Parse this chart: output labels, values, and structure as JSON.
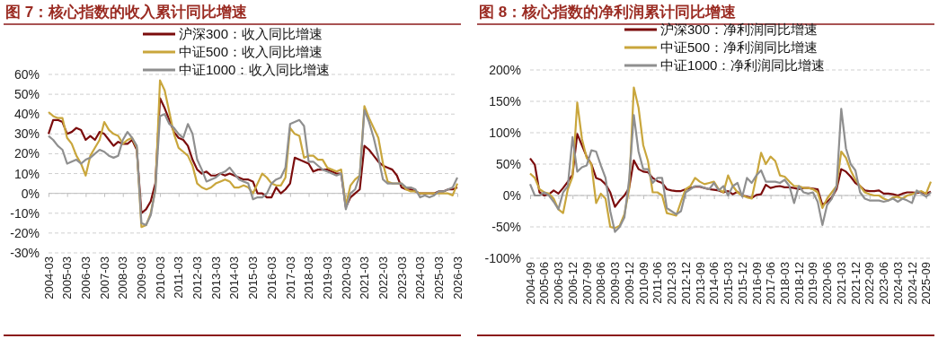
{
  "chart_data": [
    {
      "type": "line",
      "title": "图 7：核心指数的收入累计同比增速",
      "categories": [
        "2004-03",
        null,
        null,
        null,
        "2005-03",
        null,
        null,
        null,
        "2006-03",
        null,
        null,
        null,
        "2007-03",
        null,
        null,
        null,
        "2008-03",
        null,
        null,
        null,
        "2009-03",
        null,
        null,
        null,
        "2010-03",
        null,
        null,
        null,
        "2011-03",
        null,
        null,
        null,
        "2012-03",
        null,
        null,
        null,
        "2013-03",
        null,
        null,
        null,
        "2014-03",
        null,
        null,
        null,
        "2015-03",
        null,
        null,
        null,
        "2016-03",
        null,
        null,
        null,
        "2017-03",
        null,
        null,
        null,
        "2018-03",
        null,
        null,
        null,
        "2019-03",
        null,
        null,
        null,
        "2020-03",
        null,
        null,
        null,
        "2021-03",
        null,
        null,
        null,
        "2022-03",
        null,
        null,
        null,
        "2023-03",
        null,
        null,
        null,
        "2024-03",
        null,
        null,
        null,
        "2025-03",
        null,
        null,
        null,
        "2026-03"
      ],
      "series": [
        {
          "name": "沪深300：收入同比增速",
          "color": "#7b0c0c",
          "values": [
            30,
            37,
            37,
            36,
            30,
            31,
            33,
            32,
            27,
            29,
            27,
            31,
            30,
            27,
            24,
            26,
            25,
            25,
            27,
            22,
            -10,
            -8,
            -4,
            5,
            48,
            43,
            37,
            31,
            28,
            27,
            24,
            17,
            12,
            10,
            11,
            9,
            9,
            10,
            9,
            10,
            9,
            8,
            7,
            7,
            6,
            0,
            0,
            -2,
            -2,
            3,
            0,
            2,
            5,
            18,
            17,
            16,
            15,
            11,
            12,
            12,
            12,
            11,
            10,
            10,
            -7,
            -2,
            0,
            2,
            24,
            22,
            19,
            16,
            14,
            13,
            12,
            9,
            3,
            2,
            2,
            1,
            0,
            0,
            0,
            0,
            1,
            1,
            2,
            2,
            3
          ]
        },
        {
          "name": "中证500：收入同比增速",
          "color": "#c9a63c",
          "values": [
            41,
            39,
            38,
            38,
            28,
            25,
            19,
            15,
            9,
            19,
            23,
            27,
            36,
            32,
            30,
            29,
            25,
            27,
            28,
            23,
            -17,
            -16,
            -10,
            2,
            57,
            52,
            41,
            30,
            23,
            21,
            19,
            14,
            5,
            3,
            2,
            3,
            5,
            6,
            7,
            6,
            3,
            3,
            4,
            3,
            0,
            5,
            10,
            8,
            5,
            4,
            4,
            8,
            33,
            30,
            29,
            18,
            19,
            19,
            17,
            17,
            13,
            12,
            11,
            12,
            -6,
            4,
            7,
            9,
            44,
            38,
            33,
            28,
            15,
            6,
            5,
            5,
            5,
            2,
            1,
            1,
            0,
            0,
            0,
            0,
            0,
            0,
            0,
            -1,
            5
          ]
        },
        {
          "name": "中证1000：收入同比增速",
          "color": "#8f8f8f",
          "values": [
            29,
            27,
            24,
            22,
            15,
            16,
            17,
            15,
            17,
            18,
            20,
            22,
            21,
            19,
            18,
            19,
            27,
            31,
            28,
            24,
            -15,
            -16,
            -11,
            2,
            39,
            40,
            35,
            33,
            30,
            28,
            35,
            30,
            17,
            12,
            6,
            7,
            8,
            10,
            11,
            13,
            10,
            7,
            6,
            5,
            -3,
            -2,
            -2,
            0,
            5,
            7,
            8,
            13,
            35,
            36,
            37,
            34,
            16,
            16,
            14,
            12,
            11,
            10,
            9,
            10,
            -8,
            0,
            2,
            9,
            42,
            36,
            28,
            18,
            7,
            5,
            5,
            5,
            5,
            3,
            3,
            2,
            -2,
            -1,
            -2,
            -1,
            1,
            1,
            2,
            3,
            8
          ]
        }
      ],
      "ylim": [
        -30,
        60
      ],
      "yticks": [
        {
          "value": -30,
          "label": "-30%"
        },
        {
          "value": -20,
          "label": "-20%"
        },
        {
          "value": -10,
          "label": "-10%"
        },
        {
          "value": 0,
          "label": "0%"
        },
        {
          "value": 10,
          "label": "10%"
        },
        {
          "value": 20,
          "label": "20%"
        },
        {
          "value": 30,
          "label": "30%"
        },
        {
          "value": 40,
          "label": "40%"
        },
        {
          "value": 50,
          "label": "50%"
        },
        {
          "value": 60,
          "label": "60%"
        }
      ],
      "grid": "y",
      "legend": "top"
    },
    {
      "type": "line",
      "title": "图 8：核心指数的净利润累计同比增速",
      "categories": [
        "2004-09",
        null,
        null,
        "2005-06",
        null,
        null,
        "2006-03",
        null,
        null,
        "2006-12",
        null,
        null,
        "2007-09",
        null,
        null,
        "2008-06",
        null,
        null,
        "2009-03",
        null,
        null,
        "2009-12",
        null,
        null,
        "2010-09",
        null,
        null,
        "2011-06",
        null,
        null,
        "2012-03",
        null,
        null,
        "2012-12",
        null,
        null,
        "2013-09",
        null,
        null,
        "2014-06",
        null,
        null,
        "2015-03",
        null,
        null,
        "2015-12",
        null,
        null,
        "2016-09",
        null,
        null,
        "2017-06",
        null,
        null,
        "2018-03",
        null,
        null,
        "2018-12",
        null,
        null,
        "2019-09",
        null,
        null,
        "2020-06",
        null,
        null,
        "2021-03",
        null,
        null,
        "2021-12",
        null,
        null,
        "2022-09",
        null,
        null,
        "2023-06",
        null,
        null,
        "2024-03",
        null,
        null,
        "2024-12",
        null,
        null,
        "2025-09",
        null
      ],
      "series": [
        {
          "name": "沪深300：净利润同比增速",
          "color": "#7b0c0c",
          "values": [
            59,
            49,
            5,
            0,
            2,
            8,
            3,
            12,
            22,
            33,
            98,
            80,
            62,
            50,
            28,
            25,
            18,
            5,
            -18,
            -8,
            0,
            12,
            56,
            42,
            38,
            37,
            28,
            23,
            20,
            10,
            8,
            7,
            7,
            10,
            12,
            14,
            14,
            12,
            10,
            9,
            8,
            5,
            7,
            2,
            6,
            0,
            -2,
            -4,
            1,
            2,
            17,
            12,
            14,
            15,
            13,
            13,
            12,
            10,
            12,
            12,
            11,
            10,
            -15,
            -10,
            -3,
            10,
            42,
            38,
            30,
            20,
            15,
            8,
            7,
            7,
            8,
            3,
            3,
            2,
            0,
            3,
            5,
            5,
            4,
            5,
            3,
            6
          ]
        },
        {
          "name": "中证500：净利润同比增速",
          "color": "#c9a63c",
          "values": [
            35,
            28,
            10,
            5,
            3,
            -5,
            -22,
            -28,
            10,
            30,
            148,
            90,
            60,
            50,
            -12,
            3,
            -5,
            -50,
            -52,
            -48,
            -30,
            10,
            172,
            140,
            80,
            55,
            5,
            5,
            0,
            -28,
            -30,
            -32,
            -10,
            10,
            15,
            28,
            22,
            18,
            20,
            22,
            10,
            5,
            32,
            15,
            5,
            0,
            -3,
            -5,
            30,
            68,
            50,
            62,
            55,
            32,
            30,
            22,
            15,
            15,
            12,
            12,
            10,
            5,
            -20,
            -5,
            5,
            15,
            70,
            60,
            40,
            25,
            15,
            5,
            2,
            0,
            0,
            -5,
            -8,
            -3,
            -2,
            -5,
            0,
            2,
            5,
            7,
            3,
            22
          ]
        },
        {
          "name": "中证1000：净利润同比增速",
          "color": "#8f8f8f",
          "values": [
            18,
            0,
            0,
            5,
            0,
            -10,
            -22,
            5,
            15,
            93,
            38,
            45,
            48,
            72,
            70,
            48,
            28,
            -25,
            -58,
            -50,
            -35,
            25,
            128,
            70,
            42,
            42,
            20,
            28,
            28,
            -20,
            -25,
            -30,
            -25,
            5,
            10,
            15,
            15,
            12,
            10,
            20,
            8,
            15,
            0,
            15,
            20,
            -2,
            28,
            20,
            32,
            40,
            22,
            22,
            22,
            20,
            25,
            15,
            -12,
            15,
            5,
            3,
            5,
            -10,
            -47,
            -15,
            -5,
            15,
            138,
            75,
            50,
            40,
            5,
            -5,
            -8,
            -8,
            -8,
            -10,
            -8,
            -5,
            -10,
            -5,
            -8,
            -12,
            8,
            3,
            -2,
            5
          ]
        }
      ],
      "ylim": [
        -100,
        200
      ],
      "yticks": [
        {
          "value": -100,
          "label": "-100%"
        },
        {
          "value": -50,
          "label": "-50%"
        },
        {
          "value": 0,
          "label": "0%"
        },
        {
          "value": 50,
          "label": "50%"
        },
        {
          "value": 100,
          "label": "100%"
        },
        {
          "value": 150,
          "label": "150%"
        },
        {
          "value": 200,
          "label": "200%"
        }
      ],
      "grid": "y",
      "legend": "top"
    }
  ]
}
